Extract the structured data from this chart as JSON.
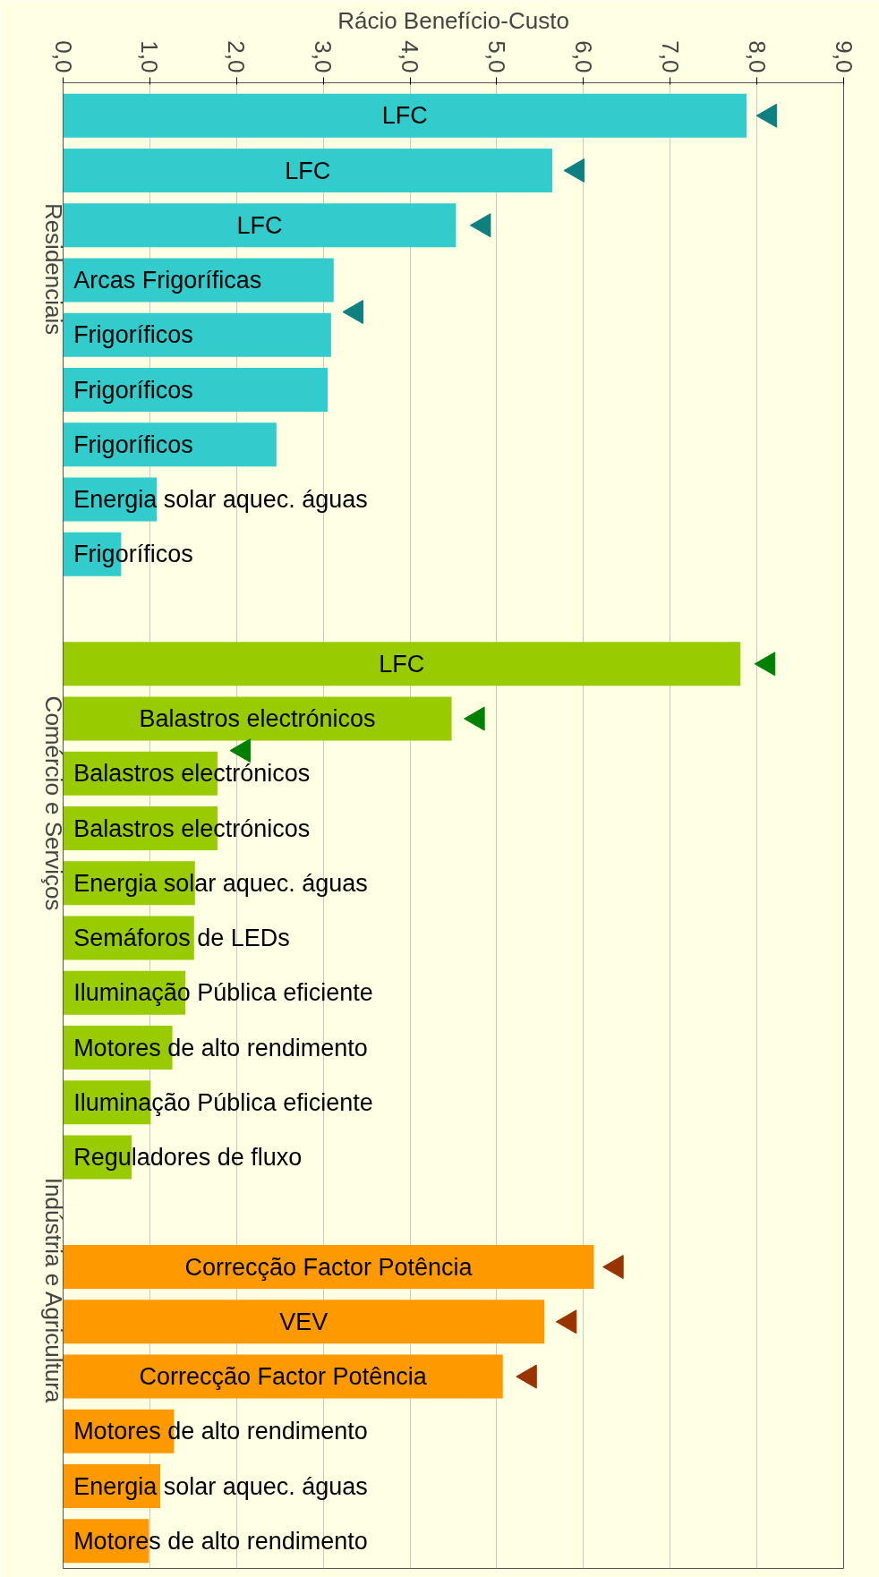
{
  "chart_data": {
    "type": "bar",
    "orientation": "horizontal",
    "title": "Rácio Benefício-Custo",
    "categories": [
      "LFC",
      "LFC",
      "LFC",
      "Arcas Frigoríficas",
      "Frigoríficos",
      "Frigoríficos",
      "Frigoríficos",
      "Energia solar aquec. águas",
      "Frigoríficos",
      null,
      "LFC",
      "Balastros electrónicos",
      "Balastros electrónicos",
      "Balastros electrónicos",
      "Energia solar aquec. águas",
      "Semáforos de LEDs",
      "Iluminação Pública eficiente",
      "Motores de alto rendimento",
      "Iluminação Pública eficiente",
      "Reguladores de fluxo",
      null,
      "Correcção Factor Potência",
      "VEV",
      "Correcção Factor Potência",
      "Motores de alto rendimento",
      "Energia solar aquec. águas",
      "Motores de alto rendimento"
    ],
    "series": [
      {
        "name": "Residenciais",
        "color": "#33cccc",
        "values": [
          7.88,
          5.64,
          4.53,
          3.12,
          3.09,
          3.05,
          2.46,
          1.08,
          0.67,
          null,
          null,
          null,
          null,
          null,
          null,
          null,
          null,
          null,
          null,
          null,
          null,
          null,
          null,
          null,
          null,
          null,
          null
        ]
      },
      {
        "name": "Comércio e Serviços",
        "color": "#99cc00",
        "values": [
          null,
          null,
          null,
          null,
          null,
          null,
          null,
          null,
          null,
          null,
          7.81,
          4.48,
          1.78,
          1.78,
          1.52,
          1.51,
          1.41,
          1.26,
          1.01,
          0.79,
          null,
          null,
          null,
          null,
          null,
          null,
          null
        ]
      },
      {
        "name": "Indústria e Agricultura",
        "color": "#ff9900",
        "values": [
          null,
          null,
          null,
          null,
          null,
          null,
          null,
          null,
          null,
          null,
          null,
          null,
          null,
          null,
          null,
          null,
          null,
          null,
          null,
          null,
          null,
          6.12,
          5.55,
          5.07,
          1.28,
          1.12,
          0.99
        ]
      },
      {
        "type": "scatter",
        "marker": "triangle",
        "color": "#0e8080",
        "values": [
          8.15,
          5.93,
          4.85,
          null,
          3.38,
          null,
          null,
          null,
          null,
          null,
          null,
          null,
          null,
          null,
          null,
          null,
          null,
          null,
          null,
          null,
          null,
          null,
          null,
          null,
          null,
          null,
          null
        ]
      },
      {
        "type": "scatter",
        "marker": "triangle",
        "color": "#008000",
        "values": [
          null,
          null,
          null,
          null,
          null,
          null,
          null,
          null,
          null,
          null,
          8.13,
          4.78,
          2.08,
          null,
          null,
          null,
          null,
          null,
          null,
          null,
          null,
          null,
          null,
          null,
          null,
          null,
          null
        ]
      },
      {
        "type": "scatter",
        "marker": "triangle",
        "color": "#993300",
        "values": [
          null,
          null,
          null,
          null,
          null,
          null,
          null,
          null,
          null,
          null,
          null,
          null,
          null,
          null,
          null,
          null,
          null,
          null,
          null,
          null,
          null,
          6.38,
          5.84,
          5.38,
          null,
          null,
          null
        ]
      }
    ],
    "xlim": [
      0,
      9
    ],
    "xticks": [
      {
        "value": 0,
        "label": "0,0"
      },
      {
        "value": 1,
        "label": "1,0"
      },
      {
        "value": 2,
        "label": "2,0"
      },
      {
        "value": 3,
        "label": "3,0"
      },
      {
        "value": 4,
        "label": "4,0"
      },
      {
        "value": 5,
        "label": "5,0"
      },
      {
        "value": 6,
        "label": "6,0"
      },
      {
        "value": 7,
        "label": "7,0"
      },
      {
        "value": 8,
        "label": "8,0"
      },
      {
        "value": 9,
        "label": "9,0"
      }
    ],
    "grid": "x"
  }
}
